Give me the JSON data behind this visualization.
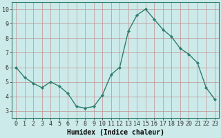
{
  "x": [
    0,
    1,
    2,
    3,
    4,
    5,
    6,
    7,
    8,
    9,
    10,
    11,
    12,
    13,
    14,
    15,
    16,
    17,
    18,
    19,
    20,
    21,
    22,
    23
  ],
  "y": [
    6.0,
    5.3,
    4.9,
    4.6,
    5.0,
    4.7,
    4.2,
    3.3,
    3.2,
    3.3,
    4.1,
    5.5,
    6.0,
    8.5,
    9.6,
    10.0,
    9.3,
    8.6,
    8.1,
    7.3,
    6.9,
    6.3,
    4.6,
    3.8
  ],
  "line_color": "#2e7d6e",
  "marker": "D",
  "marker_size": 2.0,
  "bg_color": "#cceaea",
  "grid_color": "#c09090",
  "xlabel": "Humidex (Indice chaleur)",
  "xlim": [
    -0.5,
    23.5
  ],
  "ylim": [
    2.5,
    10.5
  ],
  "yticks": [
    3,
    4,
    5,
    6,
    7,
    8,
    9,
    10
  ],
  "xticks": [
    0,
    1,
    2,
    3,
    4,
    5,
    6,
    7,
    8,
    9,
    10,
    11,
    12,
    13,
    14,
    15,
    16,
    17,
    18,
    19,
    20,
    21,
    22,
    23
  ],
  "xlabel_fontsize": 7,
  "tick_fontsize": 6,
  "line_width": 1.0
}
